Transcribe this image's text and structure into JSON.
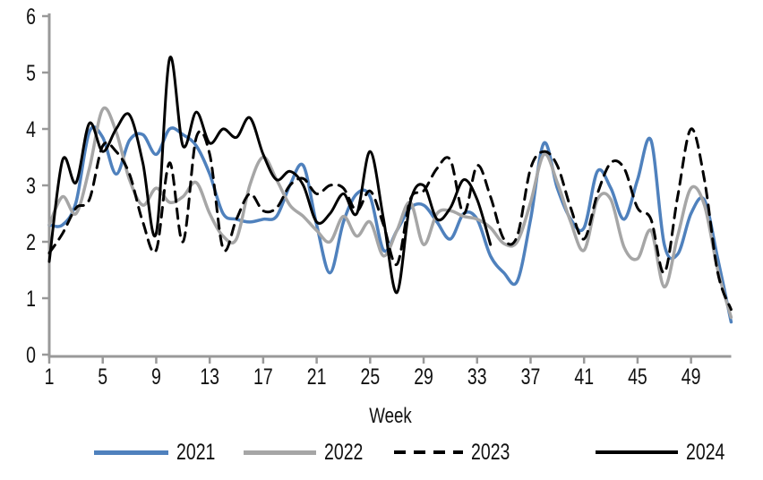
{
  "colors": {
    "series_2021": "#4F81BD",
    "series_2022": "#A6A6A6",
    "series_2023": "#000000",
    "series_2024": "#000000",
    "axis": "#999999",
    "text": "#111111"
  },
  "chart_data": {
    "type": "line",
    "title": "",
    "xlabel": "Week",
    "ylabel": "",
    "x_range": [
      1,
      52
    ],
    "y_range": [
      0,
      6
    ],
    "x_ticks": [
      1,
      5,
      9,
      13,
      17,
      21,
      25,
      29,
      33,
      37,
      41,
      45,
      49
    ],
    "y_ticks": [
      0,
      1,
      2,
      3,
      4,
      5,
      6
    ],
    "grid": false,
    "legend_position": "bottom",
    "x": [
      1,
      2,
      3,
      4,
      5,
      6,
      7,
      8,
      9,
      10,
      11,
      12,
      13,
      14,
      15,
      16,
      17,
      18,
      19,
      20,
      21,
      22,
      23,
      24,
      25,
      26,
      27,
      28,
      29,
      30,
      31,
      32,
      33,
      34,
      35,
      36,
      37,
      38,
      39,
      40,
      41,
      42,
      43,
      44,
      45,
      46,
      47,
      48,
      49,
      50,
      51,
      52
    ],
    "series": [
      {
        "name": "2021",
        "color": "#4F81BD",
        "style": "solid",
        "values": [
          2.3,
          2.3,
          2.7,
          3.95,
          3.85,
          3.2,
          3.8,
          3.9,
          3.55,
          4.0,
          3.9,
          3.7,
          3.2,
          2.5,
          2.4,
          2.35,
          2.4,
          2.45,
          3.0,
          3.35,
          2.3,
          1.45,
          2.35,
          2.85,
          2.8,
          1.85,
          2.2,
          2.6,
          2.65,
          2.35,
          2.05,
          2.5,
          2.4,
          1.75,
          1.45,
          1.3,
          2.4,
          3.75,
          2.95,
          2.4,
          2.25,
          3.25,
          2.95,
          2.4,
          3.1,
          3.8,
          1.95,
          1.78,
          2.5,
          2.74,
          1.7,
          0.58
        ]
      },
      {
        "name": "2022",
        "color": "#A6A6A6",
        "style": "solid",
        "values": [
          2.3,
          2.8,
          2.5,
          3.3,
          4.35,
          3.95,
          3.1,
          2.65,
          2.95,
          2.7,
          2.8,
          3.05,
          2.5,
          2.1,
          2.05,
          3.0,
          3.5,
          3.1,
          2.65,
          2.45,
          2.2,
          2.0,
          2.45,
          2.1,
          2.35,
          1.75,
          2.2,
          2.7,
          1.95,
          2.5,
          2.55,
          2.45,
          2.4,
          2.25,
          1.97,
          2.0,
          2.7,
          3.55,
          3.05,
          2.35,
          1.85,
          2.75,
          2.75,
          1.9,
          1.7,
          2.2,
          1.2,
          2.1,
          2.95,
          2.65,
          1.5,
          0.66
        ]
      },
      {
        "name": "2023",
        "color": "#000000",
        "style": "dashed",
        "values": [
          1.8,
          2.15,
          2.6,
          2.75,
          3.7,
          3.6,
          3.2,
          2.35,
          1.85,
          3.4,
          2.0,
          3.85,
          3.55,
          1.88,
          2.4,
          2.85,
          2.55,
          2.6,
          3.0,
          3.12,
          2.85,
          3.0,
          2.95,
          2.55,
          2.9,
          2.3,
          1.6,
          2.75,
          2.9,
          3.3,
          3.45,
          2.5,
          3.35,
          2.8,
          2.05,
          2.1,
          3.3,
          3.6,
          3.35,
          2.6,
          2.05,
          2.85,
          3.4,
          3.3,
          2.6,
          2.4,
          1.45,
          2.8,
          4.0,
          3.1,
          1.45,
          0.8
        ]
      },
      {
        "name": "2024",
        "color": "#000000",
        "style": "solid",
        "values": [
          1.65,
          3.45,
          3.05,
          4.1,
          3.6,
          4.0,
          4.25,
          3.4,
          2.15,
          5.25,
          3.7,
          4.3,
          3.75,
          4.0,
          3.85,
          4.2,
          3.55,
          3.1,
          3.25,
          3.0,
          2.35,
          2.5,
          2.85,
          2.5,
          3.6,
          2.4,
          1.1,
          2.7,
          3.0,
          2.4,
          2.6,
          3.1,
          2.75,
          1.95
        ]
      }
    ]
  }
}
